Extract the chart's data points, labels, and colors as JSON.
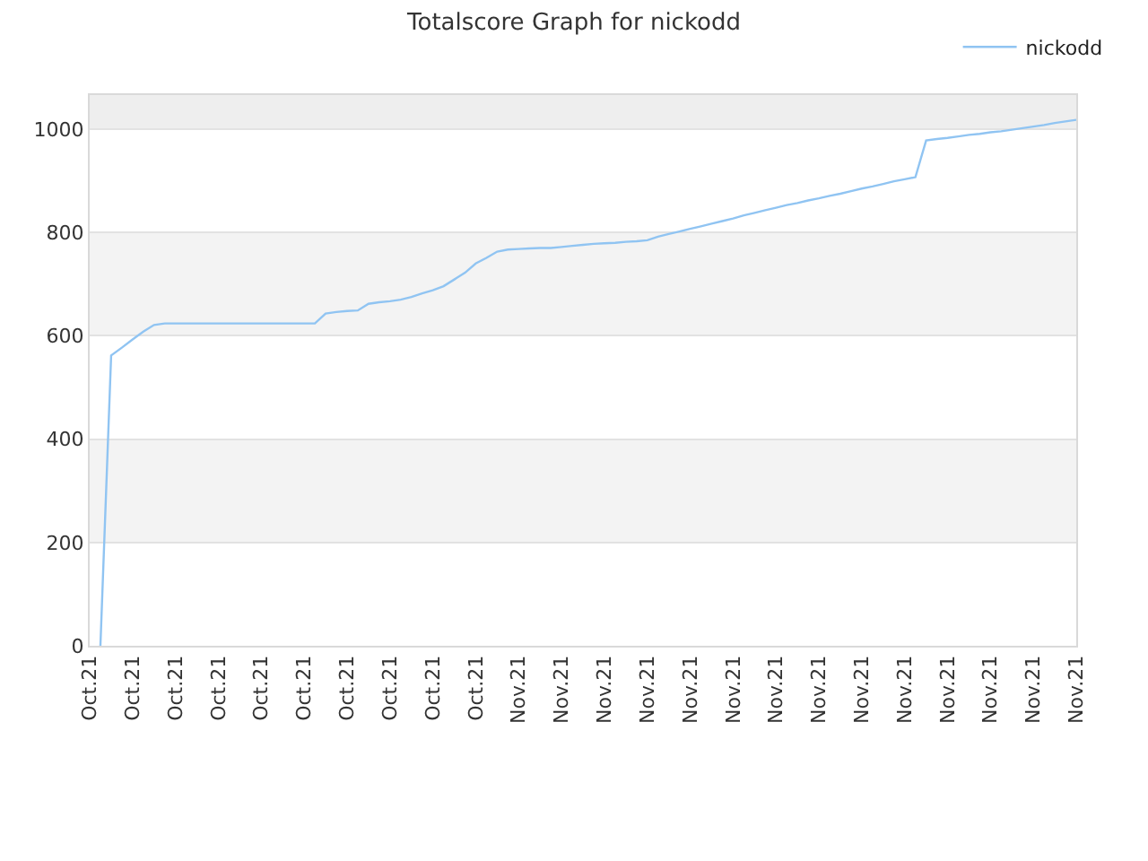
{
  "chart_data": {
    "type": "line",
    "title": "Totalscore Graph for nickodd",
    "categories": [
      "Oct.21",
      null,
      null,
      null,
      "Oct.21",
      null,
      null,
      null,
      "Oct.21",
      null,
      null,
      null,
      "Oct.21",
      null,
      null,
      null,
      "Oct.21",
      null,
      null,
      null,
      "Oct.21",
      null,
      null,
      null,
      "Oct.21",
      null,
      null,
      null,
      "Oct.21",
      null,
      null,
      null,
      "Oct.21",
      null,
      null,
      null,
      "Oct.21",
      null,
      null,
      null,
      "Nov.21",
      null,
      null,
      null,
      "Nov.21",
      null,
      null,
      null,
      "Nov.21",
      null,
      null,
      null,
      "Nov.21",
      null,
      null,
      null,
      "Nov.21",
      null,
      null,
      null,
      "Nov.21",
      null,
      null,
      null,
      "Nov.21",
      null,
      null,
      null,
      "Nov.21",
      null,
      null,
      null,
      "Nov.21",
      null,
      null,
      null,
      "Nov.21",
      null,
      null,
      null,
      "Nov.21",
      null,
      null,
      null,
      "Nov.21",
      null,
      null,
      null,
      "Nov.21",
      null,
      null,
      null,
      "Nov.21"
    ],
    "series": [
      {
        "name": "nickodd",
        "color": "#90c4f2",
        "values": [
          null,
          0,
          562,
          577,
          593,
          608,
          621,
          624,
          624,
          624,
          624,
          624,
          624,
          624,
          624,
          624,
          624,
          624,
          624,
          624,
          624,
          624,
          643,
          646,
          648,
          649,
          662,
          665,
          667,
          670,
          675,
          682,
          688,
          696,
          709,
          722,
          740,
          751,
          763,
          767,
          768,
          769,
          770,
          770,
          772,
          774,
          776,
          778,
          779,
          780,
          782,
          783,
          785,
          792,
          797,
          802,
          807,
          812,
          817,
          822,
          827,
          833,
          838,
          843,
          848,
          853,
          857,
          862,
          866,
          871,
          875,
          880,
          885,
          889,
          894,
          899,
          903,
          907,
          978,
          981,
          983,
          986,
          989,
          991,
          994,
          996,
          999,
          1002,
          1005,
          1008,
          1012,
          1015,
          1018
        ]
      }
    ],
    "ylim": [
      0,
      1066
    ],
    "yticks": [
      0,
      200,
      400,
      600,
      800,
      1000
    ],
    "grid": "y",
    "legend": "top right",
    "marker": "none",
    "line_style": "solid"
  }
}
